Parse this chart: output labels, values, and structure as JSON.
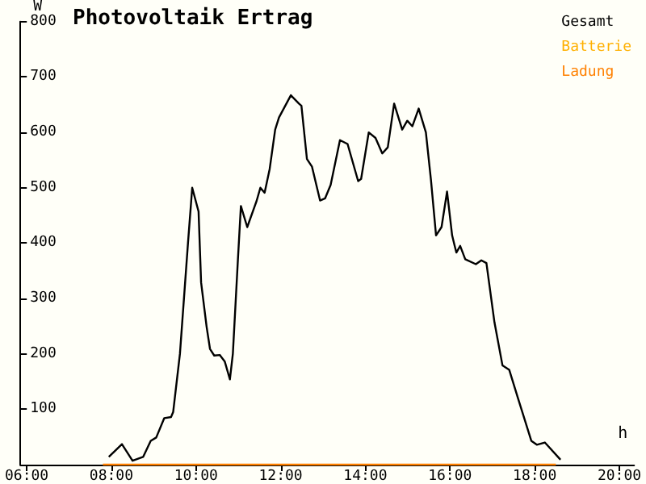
{
  "chart_data": {
    "type": "line",
    "title": "Photovoltaik Ertrag",
    "xlabel": "h",
    "ylabel": "W",
    "xlim": [
      5.85,
      20.35
    ],
    "xticks": [
      {
        "value": 6,
        "label": "06:00"
      },
      {
        "value": 8,
        "label": "08:00"
      },
      {
        "value": 10,
        "label": "10:00"
      },
      {
        "value": 12,
        "label": "12:00"
      },
      {
        "value": 14,
        "label": "14:00"
      },
      {
        "value": 16,
        "label": "16:00"
      },
      {
        "value": 18,
        "label": "18:00"
      },
      {
        "value": 20,
        "label": "20:00"
      }
    ],
    "ylim": [
      0,
      800
    ],
    "yticks": [
      100,
      200,
      300,
      400,
      500,
      600,
      700,
      800
    ],
    "grid": false,
    "legend": "top right",
    "marker": "none",
    "line_style": "solid",
    "series": [
      {
        "name": "Gesamt",
        "color": "#000000",
        "x": [
          7.94,
          8.25,
          8.5,
          8.75,
          8.93,
          9.06,
          9.25,
          9.41,
          9.46,
          9.62,
          9.81,
          9.91,
          10.06,
          10.12,
          10.25,
          10.33,
          10.43,
          10.56,
          10.68,
          10.8,
          10.87,
          10.99,
          11.06,
          11.21,
          11.43,
          11.52,
          11.62,
          11.74,
          11.87,
          11.96,
          12.24,
          12.43,
          12.49,
          12.62,
          12.74,
          12.93,
          13.05,
          13.18,
          13.4,
          13.58,
          13.83,
          13.9,
          14.08,
          14.24,
          14.4,
          14.53,
          14.68,
          14.87,
          14.99,
          15.11,
          15.26,
          15.43,
          15.55,
          15.67,
          15.8,
          15.93,
          16.05,
          16.11,
          16.15,
          16.24,
          16.36,
          16.61,
          16.74,
          16.86,
          17.05,
          17.24,
          17.4,
          17.61,
          17.92,
          18.05,
          18.24,
          18.61
        ],
        "values": [
          14,
          37,
          7,
          14,
          43,
          49,
          84,
          86,
          95,
          200,
          400,
          500,
          457,
          329,
          249,
          209,
          197,
          198,
          186,
          154,
          200,
          371,
          467,
          429,
          476,
          500,
          491,
          534,
          605,
          627,
          667,
          652,
          648,
          552,
          538,
          477,
          481,
          505,
          586,
          579,
          512,
          516,
          600,
          590,
          562,
          573,
          652,
          605,
          621,
          611,
          643,
          600,
          514,
          414,
          429,
          493,
          414,
          395,
          383,
          395,
          371,
          362,
          369,
          364,
          257,
          179,
          171,
          119,
          43,
          36,
          40,
          9
        ]
      },
      {
        "name": "Batterie",
        "color": "#ffb000"
      },
      {
        "name": "Ladung",
        "color": "#ff8000",
        "x": [
          7.8,
          18.5
        ],
        "values": [
          0,
          0
        ]
      }
    ]
  }
}
